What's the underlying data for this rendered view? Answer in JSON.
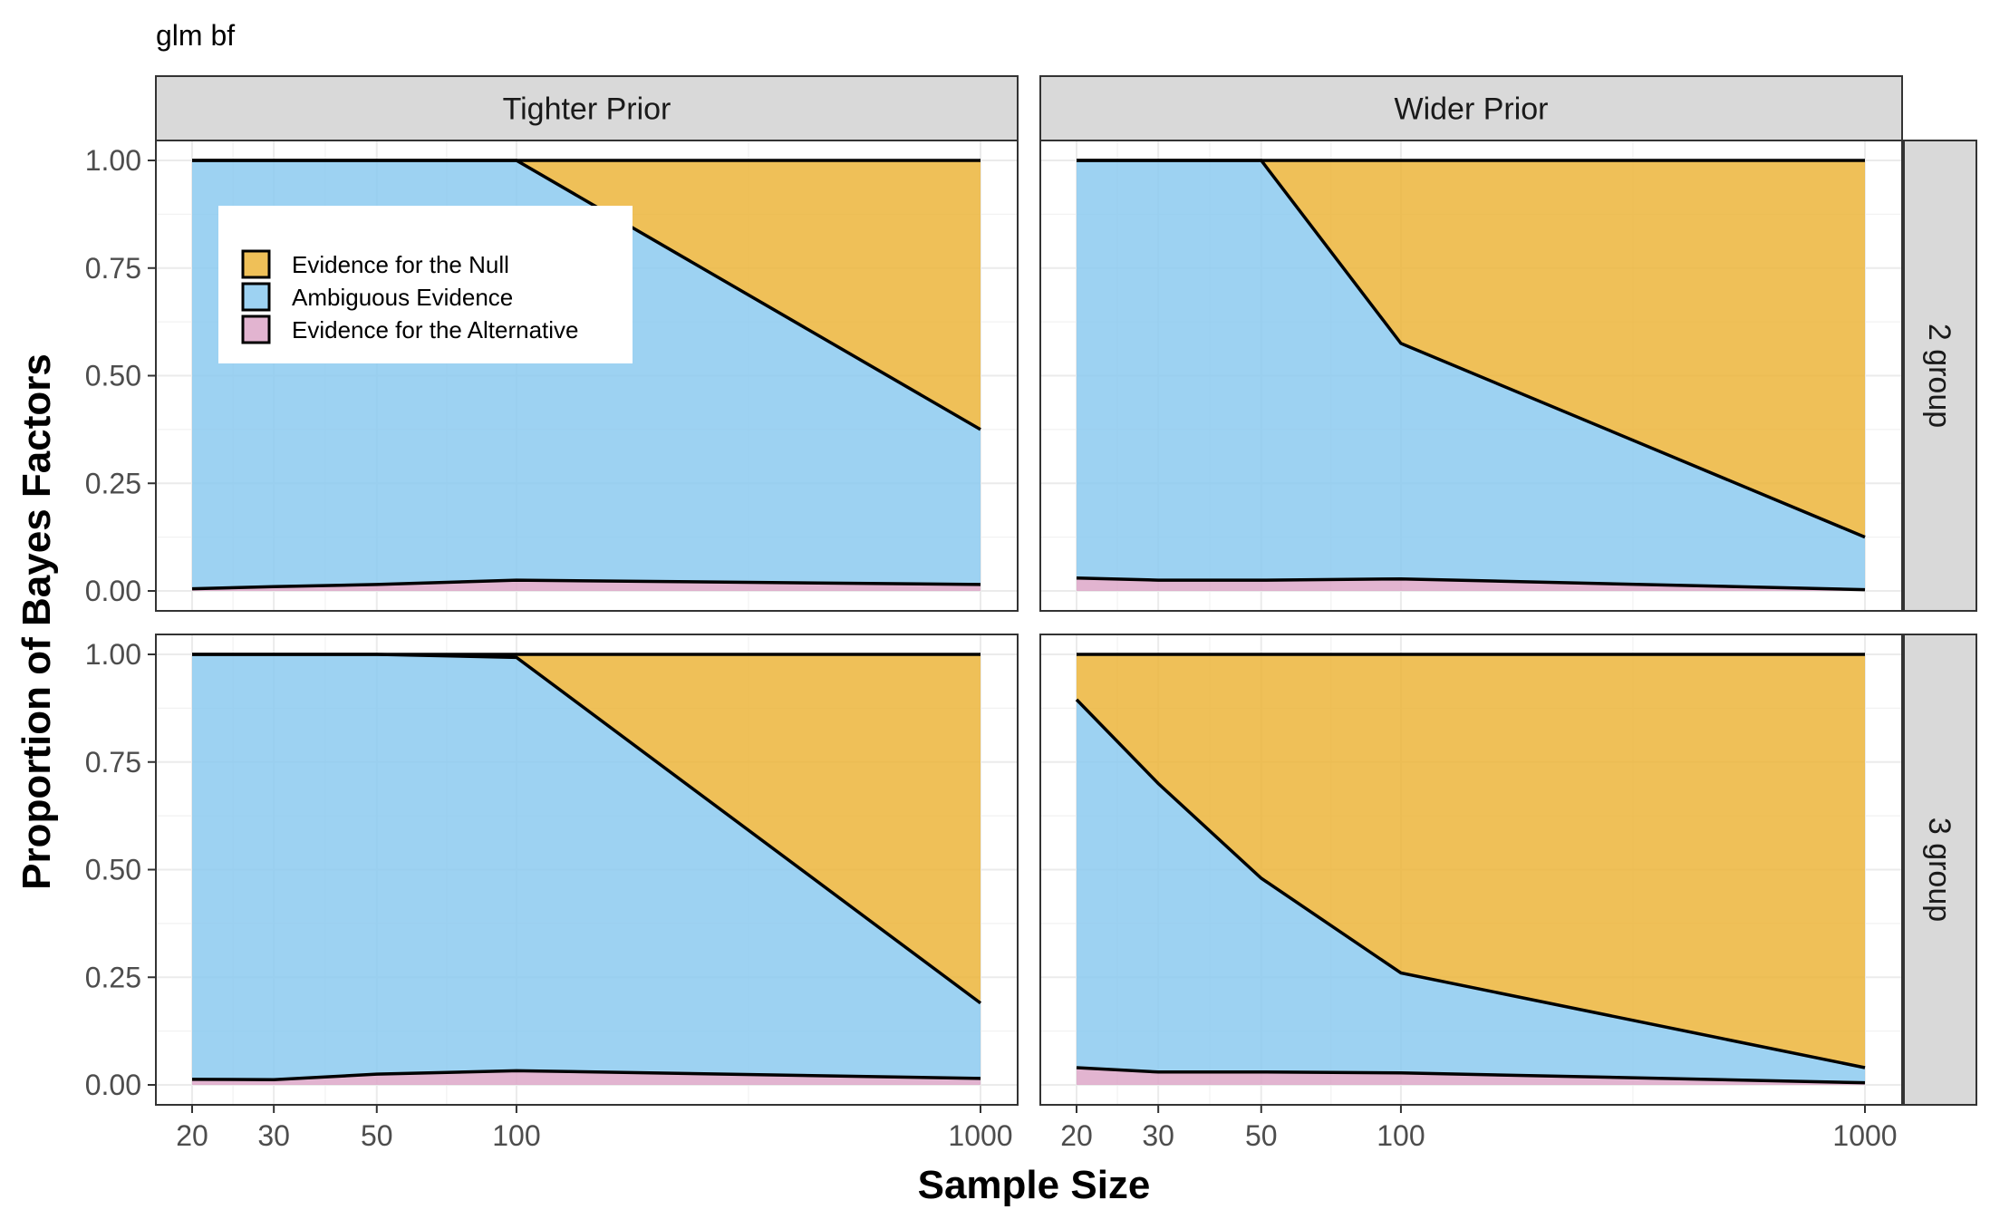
{
  "title": "glm bf",
  "xlabel": "Sample Size",
  "ylabel": "Proportion of Bayes Factors",
  "colors": {
    "null": "#EBB233",
    "ambiguous": "#87C8EF",
    "alternative": "#DCA3C6",
    "strip_fill": "#D9D9D9",
    "grid": "#EBEBEB"
  },
  "legend": {
    "position": "top-left",
    "entries": [
      {
        "key": "null",
        "label": "Evidence for the Null"
      },
      {
        "key": "ambiguous",
        "label": "Ambiguous Evidence"
      },
      {
        "key": "alternative",
        "label": "Evidence for the Alternative"
      }
    ]
  },
  "chart_data": {
    "type": "area",
    "stacked": true,
    "facets": {
      "columns": [
        "Tighter Prior",
        "Wider Prior"
      ],
      "rows": [
        "2 group",
        "3 group"
      ]
    },
    "x": [
      "20",
      "30",
      "50",
      "100",
      "1000"
    ],
    "x_scale": "log",
    "ylim": [
      0,
      1
    ],
    "y_ticks": [
      "0.00",
      "0.25",
      "0.50",
      "0.75",
      "1.00"
    ],
    "grid": true,
    "panels": [
      {
        "column": "Tighter Prior",
        "row": "2 group",
        "series": [
          {
            "key": "alternative",
            "name": "Evidence for the Alternative",
            "values": [
              0.005,
              0.01,
              0.015,
              0.025,
              0.015
            ]
          },
          {
            "key": "ambiguous",
            "name": "Ambiguous Evidence",
            "values": [
              0.995,
              0.99,
              0.985,
              0.975,
              0.36
            ]
          },
          {
            "key": "null",
            "name": "Evidence for the Null",
            "values": [
              0.0,
              0.0,
              0.0,
              0.0,
              0.625
            ]
          }
        ]
      },
      {
        "column": "Wider Prior",
        "row": "2 group",
        "series": [
          {
            "key": "alternative",
            "name": "Evidence for the Alternative",
            "values": [
              0.03,
              0.025,
              0.025,
              0.028,
              0.003
            ]
          },
          {
            "key": "ambiguous",
            "name": "Ambiguous Evidence",
            "values": [
              0.97,
              0.975,
              0.975,
              0.547,
              0.122
            ]
          },
          {
            "key": "null",
            "name": "Evidence for the Null",
            "values": [
              0.0,
              0.0,
              0.0,
              0.425,
              0.875
            ]
          }
        ]
      },
      {
        "column": "Tighter Prior",
        "row": "3 group",
        "series": [
          {
            "key": "alternative",
            "name": "Evidence for the Alternative",
            "values": [
              0.013,
              0.012,
              0.025,
              0.033,
              0.015
            ]
          },
          {
            "key": "ambiguous",
            "name": "Ambiguous Evidence",
            "values": [
              0.987,
              0.988,
              0.975,
              0.96,
              0.175
            ]
          },
          {
            "key": "null",
            "name": "Evidence for the Null",
            "values": [
              0.0,
              0.0,
              0.0,
              0.007,
              0.81
            ]
          }
        ]
      },
      {
        "column": "Wider Prior",
        "row": "3 group",
        "series": [
          {
            "key": "alternative",
            "name": "Evidence for the Alternative",
            "values": [
              0.04,
              0.03,
              0.03,
              0.028,
              0.005
            ]
          },
          {
            "key": "ambiguous",
            "name": "Ambiguous Evidence",
            "values": [
              0.855,
              0.67,
              0.45,
              0.232,
              0.035
            ]
          },
          {
            "key": "null",
            "name": "Evidence for the Null",
            "values": [
              0.105,
              0.3,
              0.52,
              0.74,
              0.96
            ]
          }
        ]
      }
    ]
  }
}
